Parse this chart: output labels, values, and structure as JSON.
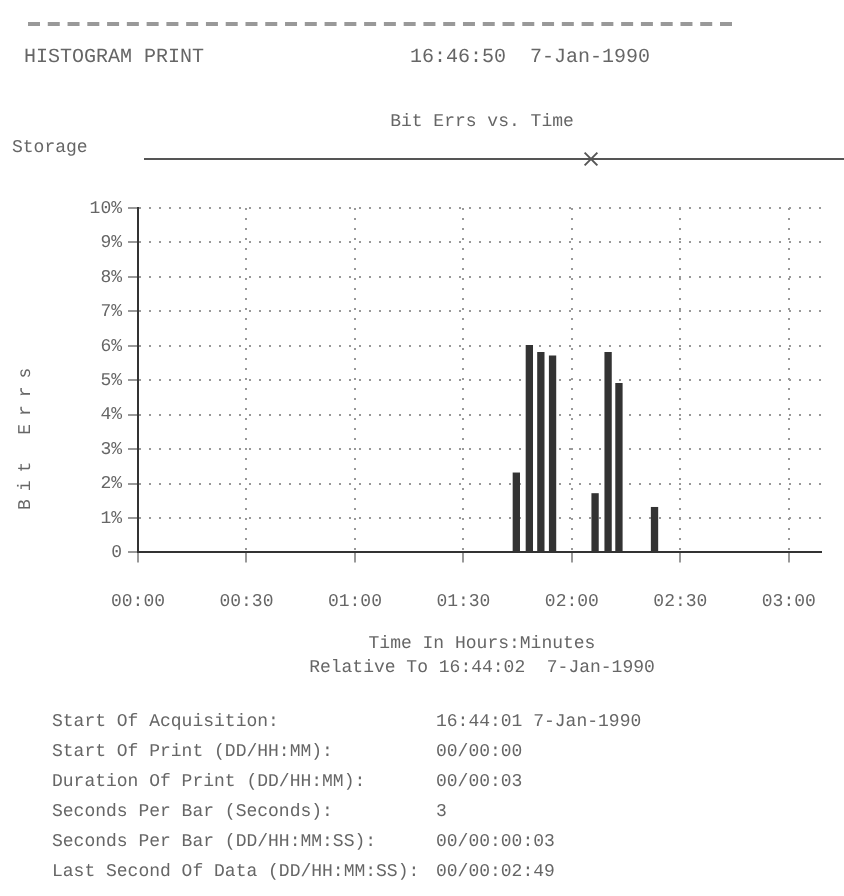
{
  "chart_data": {
    "type": "bar",
    "title": "Bit Errs vs. Time",
    "ylabel": "Bit Errs",
    "xlabel": "Time In Hours:Minutes",
    "x": [
      1.744,
      1.804,
      1.857,
      1.911,
      2.107,
      2.167,
      2.217,
      2.381
    ],
    "values": [
      2.3,
      6.0,
      5.8,
      5.7,
      1.7,
      5.8,
      4.9,
      1.3
    ],
    "color": "#333333",
    "xlim": [
      0,
      3.15
    ],
    "xticks": [
      {
        "value": 0,
        "label": "00:00"
      },
      {
        "value": 0.5,
        "label": "00:30"
      },
      {
        "value": 1,
        "label": "01:00"
      },
      {
        "value": 1.5,
        "label": "01:30"
      },
      {
        "value": 2,
        "label": "02:00"
      },
      {
        "value": 2.5,
        "label": "02:30"
      },
      {
        "value": 3,
        "label": "03:00"
      }
    ],
    "ylim": [
      0,
      10
    ],
    "yticks": [
      0,
      {
        "value": 1,
        "label": "1%"
      },
      {
        "value": 2,
        "label": "2%"
      },
      {
        "value": 3,
        "label": "3%"
      },
      {
        "value": 4,
        "label": "4%"
      },
      {
        "value": 5,
        "label": "5%"
      },
      {
        "value": 6,
        "label": "6%"
      },
      {
        "value": 7,
        "label": "7%"
      },
      {
        "value": 8,
        "label": "8%"
      },
      {
        "value": 9,
        "label": "9%"
      },
      {
        "value": 10,
        "label": "10%"
      }
    ],
    "grid": true,
    "line_style": "dotted",
    "legend": false,
    "annotations": [
      "HISTOGRAM PRINT",
      "16:46:50  7-Jan-1990",
      "Storage",
      "Relative To 16:44:02  7-Jan-1990",
      "Start Of Acquisition:",
      "16:44:01 7-Jan-1990",
      "Start Of Print (DD/HH:MM):",
      "00/00:00",
      "Duration Of Print (DD/HH:MM):",
      "00/00:03",
      "Seconds Per Bar (Seconds):",
      "3",
      "Seconds Per Bar (DD/HH:MM:SS):",
      "00/00:00:03",
      "Last Second Of Data (DD/HH:MM:SS):",
      "00/00:02:49"
    ]
  }
}
